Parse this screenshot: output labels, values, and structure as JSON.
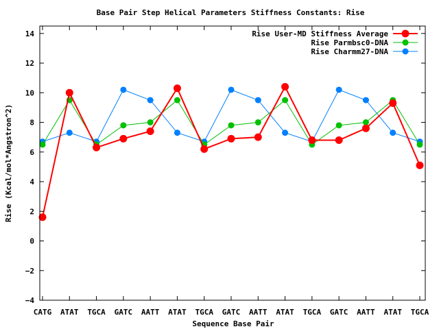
{
  "chart_data": {
    "type": "line",
    "title": "Base Pair Step Helical Parameters Stiffness Constants: Rise",
    "xlabel": "Sequence Base Pair",
    "ylabel": "Rise (Kcal/mol*Angstron^2)",
    "categories": [
      "CATG",
      "ATAT",
      "TGCA",
      "GATC",
      "AATT",
      "ATAT",
      "TGCA",
      "GATC",
      "AATT",
      "ATAT",
      "TGCA",
      "GATC",
      "AATT",
      "ATAT",
      "TGCA"
    ],
    "ylim": [
      -4,
      14.5
    ],
    "yticks": [
      -4,
      -2,
      0,
      2,
      4,
      6,
      8,
      10,
      12,
      14
    ],
    "legend_position": "top-right",
    "series": [
      {
        "name": "Rise User-MD Stiffness Average",
        "color": "#ff0000",
        "values": [
          1.6,
          10.0,
          6.3,
          6.9,
          7.4,
          10.3,
          6.2,
          6.9,
          7.0,
          10.4,
          6.8,
          6.8,
          7.6,
          9.3,
          5.1
        ]
      },
      {
        "name": "Rise Parmbsc0-DNA",
        "color": "#00c000",
        "values": [
          6.5,
          9.5,
          6.5,
          7.8,
          8.0,
          9.5,
          6.5,
          7.8,
          8.0,
          9.5,
          6.5,
          7.8,
          8.0,
          9.5,
          6.5
        ]
      },
      {
        "name": "Rise Charmm27-DNA",
        "color": "#0080ff",
        "values": [
          6.7,
          7.3,
          6.7,
          10.2,
          9.5,
          7.3,
          6.7,
          10.2,
          9.5,
          7.3,
          6.7,
          10.2,
          9.5,
          7.3,
          6.7
        ]
      }
    ]
  }
}
